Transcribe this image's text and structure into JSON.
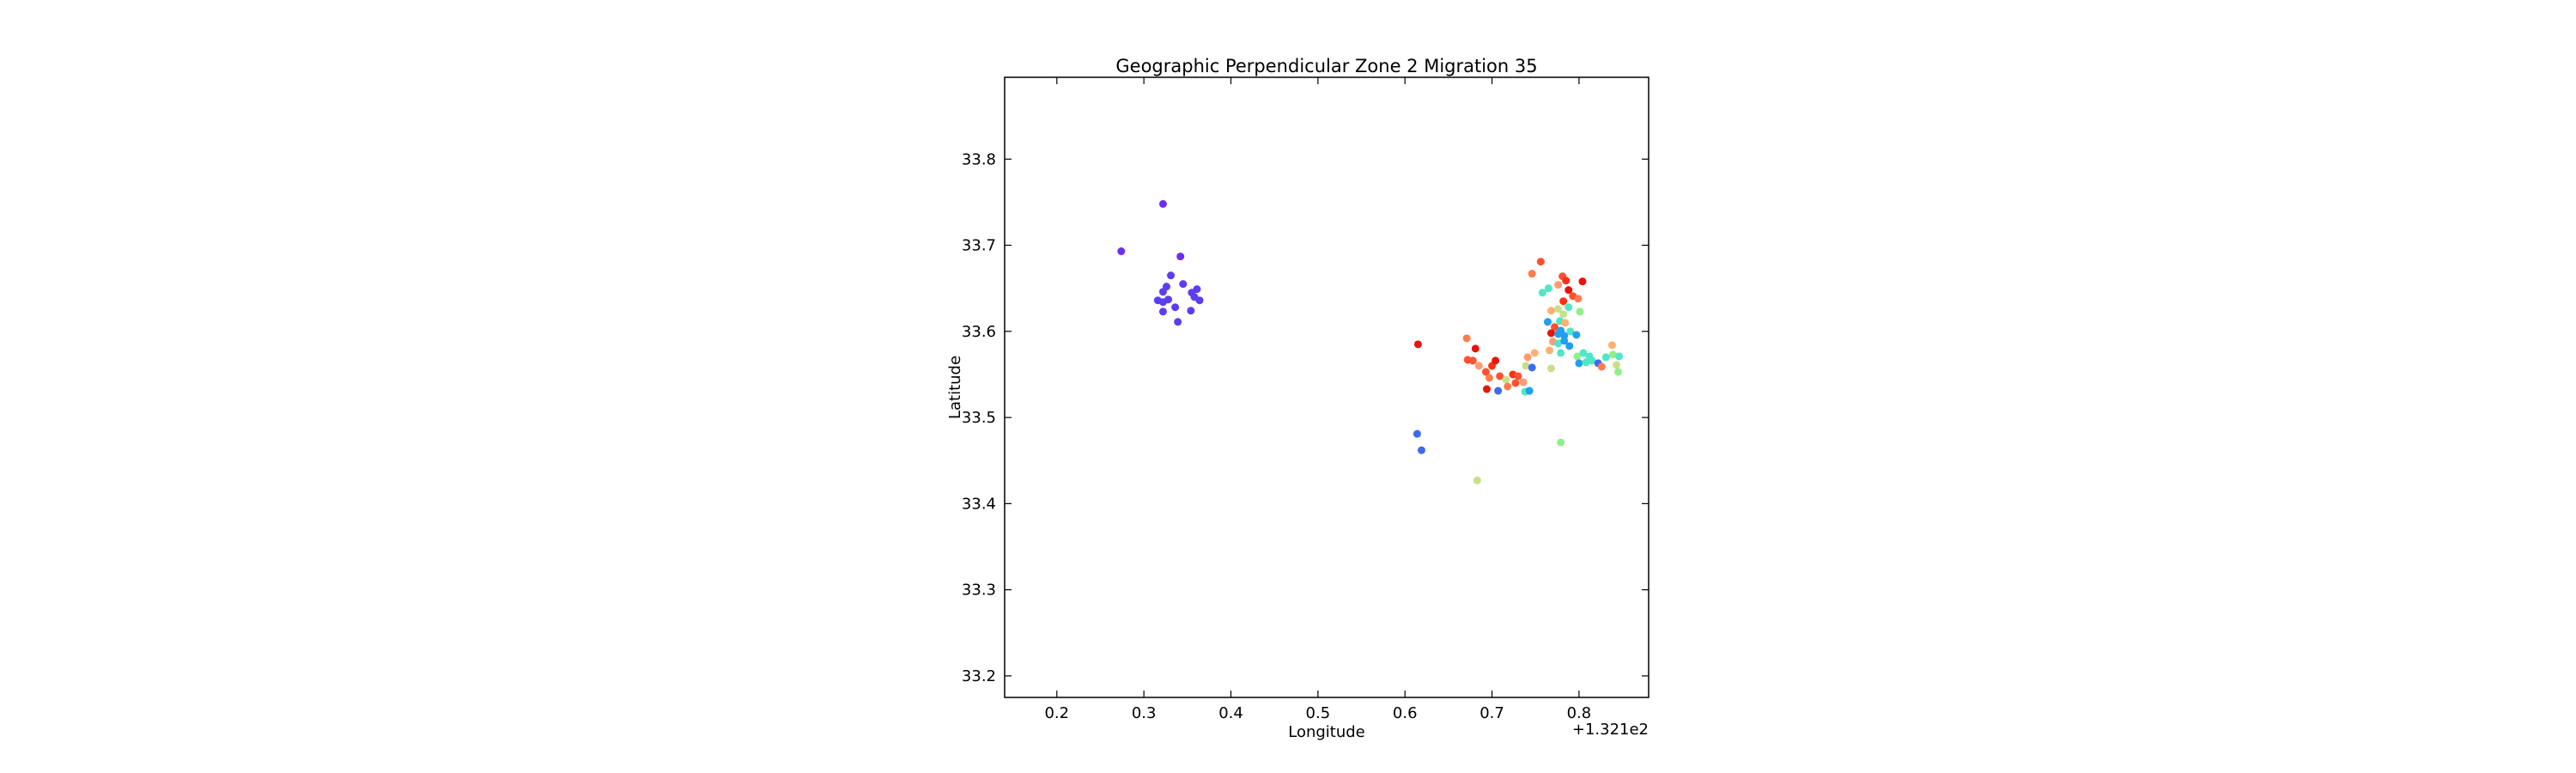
{
  "chart_data": {
    "type": "scatter",
    "title": "Geographic Perpendicular Zone 2 Migration 35",
    "xlabel": "Longitude",
    "ylabel": "Latitude",
    "x_offset_label": "+1.321e2",
    "xlim": [
      0.14,
      0.88
    ],
    "ylim": [
      33.175,
      33.895
    ],
    "xticks": [
      0.2,
      0.3,
      0.4,
      0.5,
      0.6,
      0.7,
      0.8
    ],
    "xtick_labels": [
      "0.2",
      "0.3",
      "0.4",
      "0.5",
      "0.6",
      "0.7",
      "0.8"
    ],
    "yticks": [
      33.2,
      33.3,
      33.4,
      33.5,
      33.6,
      33.7,
      33.8
    ],
    "ytick_labels": [
      "33.2",
      "33.3",
      "33.4",
      "33.5",
      "33.6",
      "33.7",
      "33.8"
    ],
    "grid": false,
    "legend": "none",
    "points": [
      {
        "x": 0.322,
        "y": 33.748,
        "color": "#6f2cf5"
      },
      {
        "x": 0.274,
        "y": 33.693,
        "color": "#6f2cf5"
      },
      {
        "x": 0.342,
        "y": 33.687,
        "color": "#6f2cf5"
      },
      {
        "x": 0.331,
        "y": 33.665,
        "color": "#5a3ff0"
      },
      {
        "x": 0.345,
        "y": 33.655,
        "color": "#5a3ff0"
      },
      {
        "x": 0.326,
        "y": 33.652,
        "color": "#5a3ff0"
      },
      {
        "x": 0.322,
        "y": 33.646,
        "color": "#5a3ff0"
      },
      {
        "x": 0.355,
        "y": 33.645,
        "color": "#5a3ff0"
      },
      {
        "x": 0.361,
        "y": 33.649,
        "color": "#5a3ff0"
      },
      {
        "x": 0.316,
        "y": 33.636,
        "color": "#5a3ff0"
      },
      {
        "x": 0.328,
        "y": 33.637,
        "color": "#5a3ff0"
      },
      {
        "x": 0.322,
        "y": 33.634,
        "color": "#5a3ff0"
      },
      {
        "x": 0.358,
        "y": 33.64,
        "color": "#5a3ff0"
      },
      {
        "x": 0.364,
        "y": 33.636,
        "color": "#5a3ff0"
      },
      {
        "x": 0.336,
        "y": 33.628,
        "color": "#5a3ff0"
      },
      {
        "x": 0.322,
        "y": 33.623,
        "color": "#5a3ff0"
      },
      {
        "x": 0.354,
        "y": 33.624,
        "color": "#5a3ff0"
      },
      {
        "x": 0.339,
        "y": 33.611,
        "color": "#5a3ff0"
      },
      {
        "x": 0.615,
        "y": 33.585,
        "color": "#e8140a"
      },
      {
        "x": 0.614,
        "y": 33.481,
        "color": "#3a6cf0"
      },
      {
        "x": 0.619,
        "y": 33.462,
        "color": "#3a6cf0"
      },
      {
        "x": 0.683,
        "y": 33.427,
        "color": "#c8e08a"
      },
      {
        "x": 0.779,
        "y": 33.471,
        "color": "#8ff08a"
      },
      {
        "x": 0.671,
        "y": 33.592,
        "color": "#ff7a4a"
      },
      {
        "x": 0.681,
        "y": 33.58,
        "color": "#e8140a"
      },
      {
        "x": 0.672,
        "y": 33.567,
        "color": "#ff5030"
      },
      {
        "x": 0.678,
        "y": 33.566,
        "color": "#ff5030"
      },
      {
        "x": 0.685,
        "y": 33.56,
        "color": "#ff9a70"
      },
      {
        "x": 0.693,
        "y": 33.553,
        "color": "#ff5030"
      },
      {
        "x": 0.7,
        "y": 33.56,
        "color": "#ff3010"
      },
      {
        "x": 0.704,
        "y": 33.566,
        "color": "#e8140a"
      },
      {
        "x": 0.697,
        "y": 33.546,
        "color": "#ff7a4a"
      },
      {
        "x": 0.709,
        "y": 33.548,
        "color": "#ff5030"
      },
      {
        "x": 0.716,
        "y": 33.544,
        "color": "#c8e08a"
      },
      {
        "x": 0.724,
        "y": 33.55,
        "color": "#ff3010"
      },
      {
        "x": 0.73,
        "y": 33.548,
        "color": "#ff5030"
      },
      {
        "x": 0.694,
        "y": 33.533,
        "color": "#e8140a"
      },
      {
        "x": 0.707,
        "y": 33.531,
        "color": "#3a6cf0"
      },
      {
        "x": 0.718,
        "y": 33.536,
        "color": "#ff7a4a"
      },
      {
        "x": 0.727,
        "y": 33.54,
        "color": "#ff5030"
      },
      {
        "x": 0.736,
        "y": 33.541,
        "color": "#ff9a70"
      },
      {
        "x": 0.738,
        "y": 33.53,
        "color": "#50e6c8"
      },
      {
        "x": 0.743,
        "y": 33.531,
        "color": "#1fa0f0"
      },
      {
        "x": 0.739,
        "y": 33.56,
        "color": "#c8e08a"
      },
      {
        "x": 0.741,
        "y": 33.57,
        "color": "#ff9a70"
      },
      {
        "x": 0.749,
        "y": 33.575,
        "color": "#ffb070"
      },
      {
        "x": 0.746,
        "y": 33.558,
        "color": "#3a6cf0"
      },
      {
        "x": 0.746,
        "y": 33.667,
        "color": "#ff7a4a"
      },
      {
        "x": 0.756,
        "y": 33.681,
        "color": "#ff5030"
      },
      {
        "x": 0.758,
        "y": 33.645,
        "color": "#50e6c8"
      },
      {
        "x": 0.765,
        "y": 33.65,
        "color": "#50e6c8"
      },
      {
        "x": 0.776,
        "y": 33.654,
        "color": "#ff9a70"
      },
      {
        "x": 0.781,
        "y": 33.664,
        "color": "#ff5030"
      },
      {
        "x": 0.785,
        "y": 33.659,
        "color": "#ff3010"
      },
      {
        "x": 0.788,
        "y": 33.648,
        "color": "#e8140a"
      },
      {
        "x": 0.793,
        "y": 33.641,
        "color": "#ff5030"
      },
      {
        "x": 0.799,
        "y": 33.638,
        "color": "#ff7a4a"
      },
      {
        "x": 0.804,
        "y": 33.658,
        "color": "#e8140a"
      },
      {
        "x": 0.782,
        "y": 33.635,
        "color": "#ff3010"
      },
      {
        "x": 0.776,
        "y": 33.626,
        "color": "#c8e08a"
      },
      {
        "x": 0.768,
        "y": 33.624,
        "color": "#ffb070"
      },
      {
        "x": 0.782,
        "y": 33.62,
        "color": "#c8e08a"
      },
      {
        "x": 0.788,
        "y": 33.628,
        "color": "#50e6c8"
      },
      {
        "x": 0.801,
        "y": 33.623,
        "color": "#8ff08a"
      },
      {
        "x": 0.764,
        "y": 33.611,
        "color": "#1fa0f0"
      },
      {
        "x": 0.772,
        "y": 33.605,
        "color": "#ff5030"
      },
      {
        "x": 0.778,
        "y": 33.612,
        "color": "#50e6c8"
      },
      {
        "x": 0.784,
        "y": 33.61,
        "color": "#ffb070"
      },
      {
        "x": 0.768,
        "y": 33.598,
        "color": "#e8140a"
      },
      {
        "x": 0.776,
        "y": 33.597,
        "color": "#1fa0f0"
      },
      {
        "x": 0.779,
        "y": 33.601,
        "color": "#1fa0f0"
      },
      {
        "x": 0.783,
        "y": 33.595,
        "color": "#1fa0f0"
      },
      {
        "x": 0.79,
        "y": 33.6,
        "color": "#50e6c8"
      },
      {
        "x": 0.797,
        "y": 33.596,
        "color": "#1fa0f0"
      },
      {
        "x": 0.77,
        "y": 33.588,
        "color": "#ff9a70"
      },
      {
        "x": 0.776,
        "y": 33.586,
        "color": "#50e6c8"
      },
      {
        "x": 0.783,
        "y": 33.589,
        "color": "#1fa0f0"
      },
      {
        "x": 0.789,
        "y": 33.583,
        "color": "#1fa0f0"
      },
      {
        "x": 0.766,
        "y": 33.578,
        "color": "#ffb070"
      },
      {
        "x": 0.779,
        "y": 33.575,
        "color": "#50e6c8"
      },
      {
        "x": 0.768,
        "y": 33.557,
        "color": "#c8e08a"
      },
      {
        "x": 0.798,
        "y": 33.571,
        "color": "#8ff08a"
      },
      {
        "x": 0.805,
        "y": 33.575,
        "color": "#50e6c8"
      },
      {
        "x": 0.812,
        "y": 33.571,
        "color": "#50e6c8"
      },
      {
        "x": 0.8,
        "y": 33.563,
        "color": "#1fa0f0"
      },
      {
        "x": 0.808,
        "y": 33.564,
        "color": "#50e6c8"
      },
      {
        "x": 0.815,
        "y": 33.566,
        "color": "#50e6c8"
      },
      {
        "x": 0.822,
        "y": 33.563,
        "color": "#3a6cf0"
      },
      {
        "x": 0.826,
        "y": 33.559,
        "color": "#ff7a4a"
      },
      {
        "x": 0.831,
        "y": 33.57,
        "color": "#50e6c8"
      },
      {
        "x": 0.838,
        "y": 33.584,
        "color": "#ffb070"
      },
      {
        "x": 0.839,
        "y": 33.573,
        "color": "#8ff08a"
      },
      {
        "x": 0.846,
        "y": 33.571,
        "color": "#50e6c8"
      },
      {
        "x": 0.843,
        "y": 33.561,
        "color": "#c8e08a"
      },
      {
        "x": 0.845,
        "y": 33.553,
        "color": "#8ff08a"
      }
    ]
  }
}
